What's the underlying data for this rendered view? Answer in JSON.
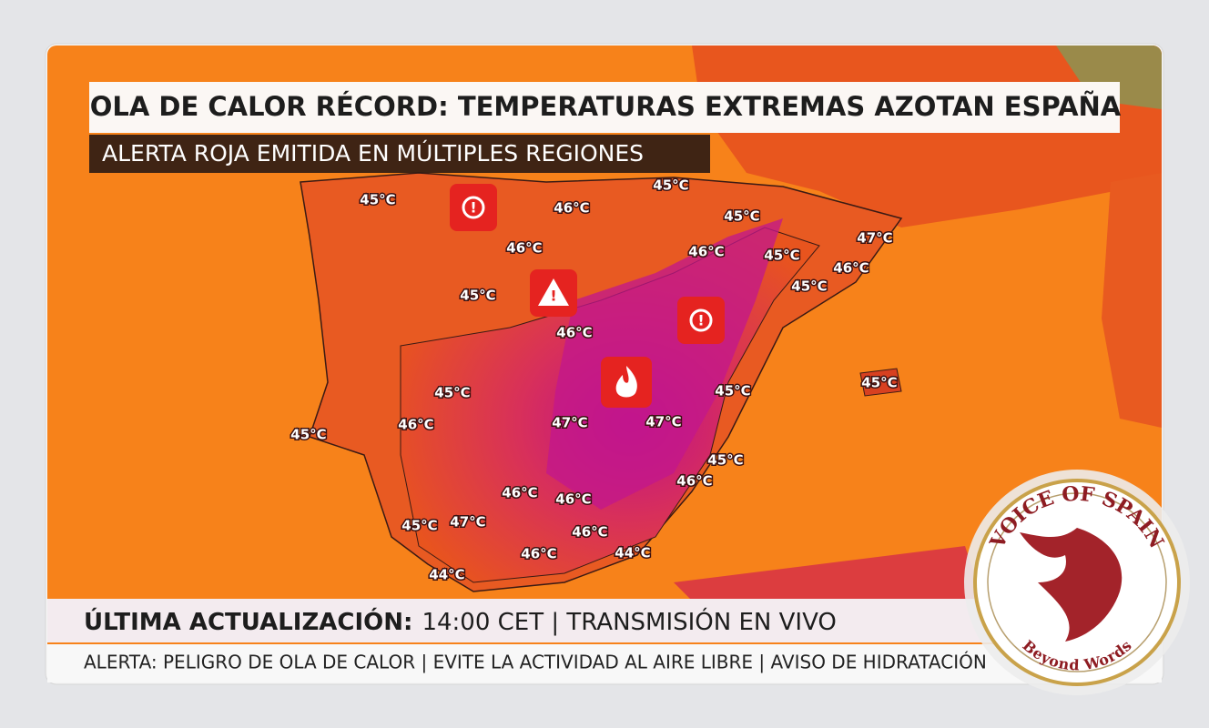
{
  "header": {
    "title": "OLA DE CALOR RÉCORD: TEMPERATURAS EXTREMAS AZOTAN ESPAÑA",
    "subtitle": "ALERTA ROJA EMITIDA EN MÚLTIPLES REGIONES"
  },
  "map": {
    "labels": [
      "45°C",
      "46°C",
      "46°C",
      "45°C",
      "46°C",
      "45°C",
      "45°C",
      "46°C",
      "45°C",
      "47°C",
      "46°C",
      "45°C",
      "45°C",
      "46°C",
      "47°C",
      "47°C",
      "45°C",
      "45°C",
      "45°C",
      "45°C",
      "46°C",
      "46°C",
      "46°C",
      "45°C",
      "47°C",
      "46°C",
      "44°C",
      "46°C",
      "44°C"
    ]
  },
  "footer": {
    "update_label": "ÚLTIMA ACTUALIZACIÓN:",
    "update_text": "14:00 CET | TRANSMISIÓN EN VIVO",
    "ticker": "ALERTA: PELIGRO DE OLA DE CALOR | EVITE LA ACTIVIDAD AL AIRE LIBRE | AVISO DE HIDRATACIÓN"
  },
  "logo": {
    "name": "VOICE OF SPAIN",
    "tagline": "Beyond Words"
  }
}
